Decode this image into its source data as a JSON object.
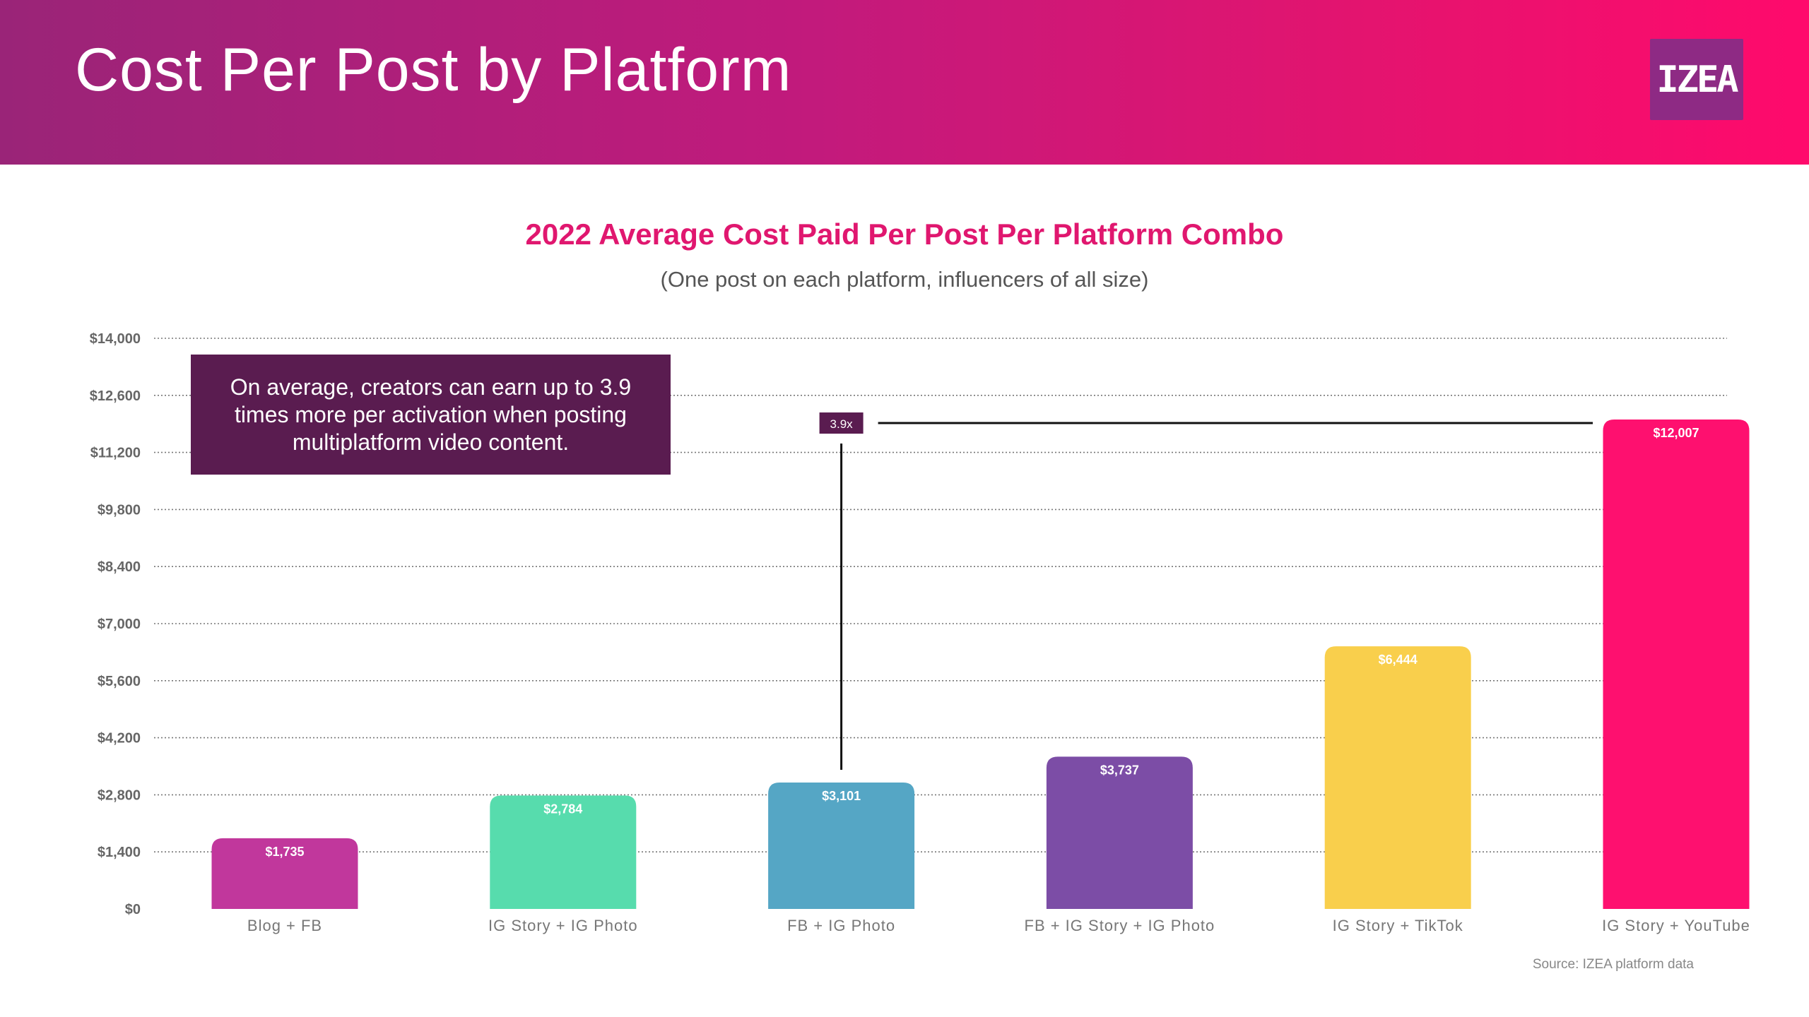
{
  "header": {
    "title": "Cost Per Post by Platform",
    "logo_text": "IZEA"
  },
  "colors": {
    "header_gradient": [
      "#9a2478",
      "#ff0a6c"
    ],
    "chart_title": "#e0176f",
    "callout_bg": "#5a1c50",
    "grid": "#777777"
  },
  "chart_data": {
    "type": "bar",
    "title": "2022 Average Cost Paid Per Post Per Platform Combo",
    "subtitle": "(One post on each platform, influencers of all size)",
    "categories": [
      "Blog + FB",
      "IG Story + IG Photo",
      "FB + IG Photo",
      "FB + IG Story + IG Photo",
      "IG Story + TikTok",
      "IG Story + YouTube"
    ],
    "values": [
      1735,
      2784,
      3101,
      3737,
      6444,
      12007
    ],
    "value_labels": [
      "$1,735",
      "$2,784",
      "$3,101",
      "$3,737",
      "$6,444",
      "$12,007"
    ],
    "bar_colors": [
      "#c1379c",
      "#57dcad",
      "#55a6c5",
      "#7c4da6",
      "#f9cf4c",
      "#fe106f"
    ],
    "ylim": [
      0,
      14000
    ],
    "yticks": [
      0,
      1400,
      2800,
      4200,
      5600,
      7000,
      8400,
      9800,
      11200,
      12600,
      14000
    ],
    "ytick_labels": [
      "$0",
      "$1,400",
      "$2,800",
      "$4,200",
      "$5,600",
      "$7,000",
      "$8,400",
      "$9,800",
      "$11,200",
      "$12,600",
      "$14,000"
    ],
    "grid": true,
    "annotation": {
      "label": "3.9x",
      "from_category": "FB + IG Photo",
      "to_category": "IG Story + YouTube"
    }
  },
  "callout": {
    "text": "On average, creators can earn up to 3.9 times more per activation when posting multiplatform video content."
  },
  "source": "Source: IZEA platform data"
}
